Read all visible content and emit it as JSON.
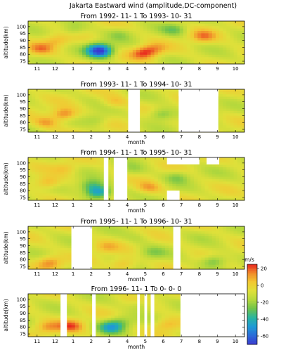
{
  "figure": {
    "title": "Jakarta Eastward wind (amplitude,DC-component)"
  },
  "colorbar": {
    "unit": "m/s",
    "ticks": [
      20,
      0,
      -20,
      -40,
      -60
    ],
    "range": [
      -70,
      25
    ],
    "colors": [
      "#e8241e",
      "#f08a2a",
      "#f2c832",
      "#dfe03a",
      "#b4d83c",
      "#6ec24a",
      "#28b4a0",
      "#1f9ad6",
      "#2a6ad8",
      "#3a3ad0"
    ]
  },
  "chart_data": [
    {
      "type": "heatmap",
      "title": "From 1992- 11- 1  To 1993- 10- 31",
      "xlabel": "",
      "ylabel": "altitude(km)",
      "x_ticks": [
        "11",
        "12",
        "1",
        "2",
        "3",
        "4",
        "5",
        "6",
        "7",
        "8",
        "9",
        "10"
      ],
      "y_ticks": [
        100,
        95,
        90,
        85,
        80,
        75
      ],
      "ylim": [
        73,
        104
      ],
      "gaps": [],
      "blobs": [
        {
          "month": 3.5,
          "alt": 82,
          "value": -55
        },
        {
          "month": 3.4,
          "alt": 85,
          "value": -30
        },
        {
          "month": 5.9,
          "alt": 81,
          "value": 18
        },
        {
          "month": 6.5,
          "alt": 84,
          "value": 8
        },
        {
          "month": 0.2,
          "alt": 84,
          "value": 10
        },
        {
          "month": 9.2,
          "alt": 93,
          "value": 12
        },
        {
          "month": 2.0,
          "alt": 98,
          "value": -22
        },
        {
          "month": 7.6,
          "alt": 98,
          "value": -24
        },
        {
          "month": 4.6,
          "alt": 95,
          "value": -18
        },
        {
          "month": 1.1,
          "alt": 90,
          "value": 6
        }
      ]
    },
    {
      "type": "heatmap",
      "title": "From 1993- 11- 1  To 1994- 10- 31",
      "xlabel": "month",
      "ylabel": "altitude(km)",
      "x_ticks": [
        "11",
        "12",
        "1",
        "2",
        "3",
        "4",
        "5",
        "6",
        "7",
        "8",
        "9",
        "10"
      ],
      "y_ticks": [
        100,
        95,
        90,
        85,
        80,
        75
      ],
      "ylim": [
        73,
        104
      ],
      "gaps": [
        [
          5.05,
          5.7
        ],
        [
          7.85,
          10.05
        ]
      ],
      "gap_top_only": [
        [
          7.85,
          10.05,
          99
        ]
      ],
      "blobs": [
        {
          "month": 1.5,
          "alt": 86,
          "value": 18
        },
        {
          "month": 0.5,
          "alt": 80,
          "value": 10
        },
        {
          "month": 3.3,
          "alt": 82,
          "value": -20
        },
        {
          "month": 6.9,
          "alt": 86,
          "value": -28
        },
        {
          "month": 9.3,
          "alt": 88,
          "value": -18
        },
        {
          "month": 4.3,
          "alt": 95,
          "value": 6
        },
        {
          "month": 2.6,
          "alt": 97,
          "value": -10
        }
      ]
    },
    {
      "type": "heatmap",
      "title": "From 1994- 11- 1  To 1995- 10- 31",
      "xlabel": "month",
      "ylabel": "altitude(km)",
      "x_ticks": [
        "11",
        "12",
        "1",
        "2",
        "3",
        "4",
        "5",
        "6",
        "7",
        "8",
        "9",
        "10"
      ],
      "y_ticks": [
        100,
        95,
        90,
        85,
        80,
        75
      ],
      "ylim": [
        73,
        104
      ],
      "gaps": [
        [
          3.7,
          3.95
        ],
        [
          4.25,
          5.0
        ]
      ],
      "gap_top_only": [
        [
          7.2,
          9.0,
          99
        ],
        [
          9.4,
          10.1,
          99
        ]
      ],
      "gap_bottom_only": [
        [
          7.2,
          7.9,
          80
        ]
      ],
      "blobs": [
        {
          "month": 3.4,
          "alt": 79,
          "value": -50
        },
        {
          "month": 3.0,
          "alt": 84,
          "value": -30
        },
        {
          "month": 0.6,
          "alt": 86,
          "value": 12
        },
        {
          "month": 6.2,
          "alt": 82,
          "value": 10
        },
        {
          "month": 7.8,
          "alt": 90,
          "value": -22
        },
        {
          "month": 5.3,
          "alt": 95,
          "value": -18
        },
        {
          "month": 1.6,
          "alt": 96,
          "value": 4
        },
        {
          "month": 9.7,
          "alt": 93,
          "value": -10
        }
      ]
    },
    {
      "type": "heatmap",
      "title": "From 1995- 11- 1  To 1996- 10- 31",
      "xlabel": "month",
      "ylabel": "altitude(km)",
      "x_ticks": [
        "11",
        "12",
        "1",
        "2",
        "3",
        "4",
        "5",
        "6",
        "7",
        "8",
        "9",
        "10"
      ],
      "y_ticks": [
        100,
        95,
        90,
        85,
        80,
        75
      ],
      "ylim": [
        73,
        104
      ],
      "gaps": [
        [
          1.9,
          3.05
        ],
        [
          7.55,
          7.95
        ]
      ],
      "blobs": [
        {
          "month": 0.7,
          "alt": 78,
          "value": 14
        },
        {
          "month": 4.8,
          "alt": 77,
          "value": 10
        },
        {
          "month": 9.8,
          "alt": 79,
          "value": -30
        },
        {
          "month": 6.4,
          "alt": 85,
          "value": -20
        },
        {
          "month": 5.6,
          "alt": 96,
          "value": -14
        },
        {
          "month": 9.1,
          "alt": 97,
          "value": -10
        },
        {
          "month": 3.8,
          "alt": 89,
          "value": 4
        }
      ]
    },
    {
      "type": "heatmap",
      "title": "From 1996- 11- 1  To 0- 0- 0",
      "xlabel": "month",
      "ylabel": "altitude(km)",
      "x_ticks": [
        "11",
        "12",
        "1",
        "2",
        "3",
        "4",
        "5",
        "6",
        "7",
        "8",
        "9",
        "10"
      ],
      "y_ticks": [
        100,
        95,
        90,
        85,
        80,
        75
      ],
      "ylim": [
        73,
        104
      ],
      "gaps": [
        [
          1.3,
          1.65
        ],
        [
          3.05,
          3.25
        ],
        [
          5.55,
          5.7
        ],
        [
          5.95,
          6.1
        ],
        [
          6.3,
          6.5
        ],
        [
          7.95,
          11.5
        ]
      ],
      "blobs": [
        {
          "month": 1.9,
          "alt": 81,
          "value": 16
        },
        {
          "month": 0.6,
          "alt": 80,
          "value": 10
        },
        {
          "month": 4.1,
          "alt": 80,
          "value": -40
        },
        {
          "month": 4.6,
          "alt": 84,
          "value": -22
        },
        {
          "month": 7.2,
          "alt": 82,
          "value": 8
        },
        {
          "month": 5.8,
          "alt": 96,
          "value": -18
        },
        {
          "month": 2.6,
          "alt": 96,
          "value": -8
        }
      ]
    }
  ]
}
